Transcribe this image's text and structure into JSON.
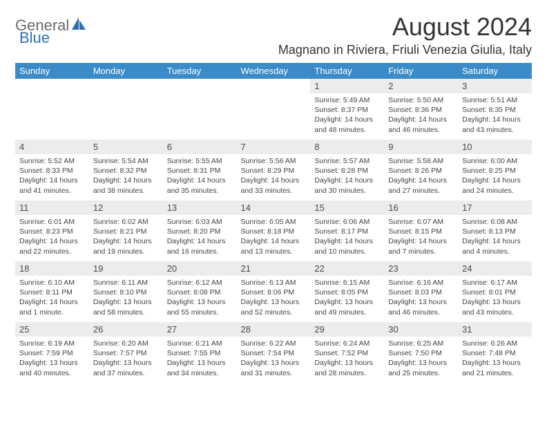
{
  "logo": {
    "text1": "General",
    "text2": "Blue"
  },
  "title": "August 2024",
  "location": "Magnano in Riviera, Friuli Venezia Giulia, Italy",
  "colors": {
    "header_bg": "#3b8bc8",
    "header_text": "#ffffff",
    "daynum_bg": "#ececec",
    "logo_gray": "#6a6a6a",
    "logo_blue": "#2f6fb0"
  },
  "weekdays": [
    "Sunday",
    "Monday",
    "Tuesday",
    "Wednesday",
    "Thursday",
    "Friday",
    "Saturday"
  ],
  "weeks": [
    [
      null,
      null,
      null,
      null,
      {
        "n": "1",
        "sr": "Sunrise: 5:49 AM",
        "ss": "Sunset: 8:37 PM",
        "dl": "Daylight: 14 hours and 48 minutes."
      },
      {
        "n": "2",
        "sr": "Sunrise: 5:50 AM",
        "ss": "Sunset: 8:36 PM",
        "dl": "Daylight: 14 hours and 46 minutes."
      },
      {
        "n": "3",
        "sr": "Sunrise: 5:51 AM",
        "ss": "Sunset: 8:35 PM",
        "dl": "Daylight: 14 hours and 43 minutes."
      }
    ],
    [
      {
        "n": "4",
        "sr": "Sunrise: 5:52 AM",
        "ss": "Sunset: 8:33 PM",
        "dl": "Daylight: 14 hours and 41 minutes."
      },
      {
        "n": "5",
        "sr": "Sunrise: 5:54 AM",
        "ss": "Sunset: 8:32 PM",
        "dl": "Daylight: 14 hours and 38 minutes."
      },
      {
        "n": "6",
        "sr": "Sunrise: 5:55 AM",
        "ss": "Sunset: 8:31 PM",
        "dl": "Daylight: 14 hours and 35 minutes."
      },
      {
        "n": "7",
        "sr": "Sunrise: 5:56 AM",
        "ss": "Sunset: 8:29 PM",
        "dl": "Daylight: 14 hours and 33 minutes."
      },
      {
        "n": "8",
        "sr": "Sunrise: 5:57 AM",
        "ss": "Sunset: 8:28 PM",
        "dl": "Daylight: 14 hours and 30 minutes."
      },
      {
        "n": "9",
        "sr": "Sunrise: 5:58 AM",
        "ss": "Sunset: 8:26 PM",
        "dl": "Daylight: 14 hours and 27 minutes."
      },
      {
        "n": "10",
        "sr": "Sunrise: 6:00 AM",
        "ss": "Sunset: 8:25 PM",
        "dl": "Daylight: 14 hours and 24 minutes."
      }
    ],
    [
      {
        "n": "11",
        "sr": "Sunrise: 6:01 AM",
        "ss": "Sunset: 8:23 PM",
        "dl": "Daylight: 14 hours and 22 minutes."
      },
      {
        "n": "12",
        "sr": "Sunrise: 6:02 AM",
        "ss": "Sunset: 8:21 PM",
        "dl": "Daylight: 14 hours and 19 minutes."
      },
      {
        "n": "13",
        "sr": "Sunrise: 6:03 AM",
        "ss": "Sunset: 8:20 PM",
        "dl": "Daylight: 14 hours and 16 minutes."
      },
      {
        "n": "14",
        "sr": "Sunrise: 6:05 AM",
        "ss": "Sunset: 8:18 PM",
        "dl": "Daylight: 14 hours and 13 minutes."
      },
      {
        "n": "15",
        "sr": "Sunrise: 6:06 AM",
        "ss": "Sunset: 8:17 PM",
        "dl": "Daylight: 14 hours and 10 minutes."
      },
      {
        "n": "16",
        "sr": "Sunrise: 6:07 AM",
        "ss": "Sunset: 8:15 PM",
        "dl": "Daylight: 14 hours and 7 minutes."
      },
      {
        "n": "17",
        "sr": "Sunrise: 6:08 AM",
        "ss": "Sunset: 8:13 PM",
        "dl": "Daylight: 14 hours and 4 minutes."
      }
    ],
    [
      {
        "n": "18",
        "sr": "Sunrise: 6:10 AM",
        "ss": "Sunset: 8:11 PM",
        "dl": "Daylight: 14 hours and 1 minute."
      },
      {
        "n": "19",
        "sr": "Sunrise: 6:11 AM",
        "ss": "Sunset: 8:10 PM",
        "dl": "Daylight: 13 hours and 58 minutes."
      },
      {
        "n": "20",
        "sr": "Sunrise: 6:12 AM",
        "ss": "Sunset: 8:08 PM",
        "dl": "Daylight: 13 hours and 55 minutes."
      },
      {
        "n": "21",
        "sr": "Sunrise: 6:13 AM",
        "ss": "Sunset: 8:06 PM",
        "dl": "Daylight: 13 hours and 52 minutes."
      },
      {
        "n": "22",
        "sr": "Sunrise: 6:15 AM",
        "ss": "Sunset: 8:05 PM",
        "dl": "Daylight: 13 hours and 49 minutes."
      },
      {
        "n": "23",
        "sr": "Sunrise: 6:16 AM",
        "ss": "Sunset: 8:03 PM",
        "dl": "Daylight: 13 hours and 46 minutes."
      },
      {
        "n": "24",
        "sr": "Sunrise: 6:17 AM",
        "ss": "Sunset: 8:01 PM",
        "dl": "Daylight: 13 hours and 43 minutes."
      }
    ],
    [
      {
        "n": "25",
        "sr": "Sunrise: 6:19 AM",
        "ss": "Sunset: 7:59 PM",
        "dl": "Daylight: 13 hours and 40 minutes."
      },
      {
        "n": "26",
        "sr": "Sunrise: 6:20 AM",
        "ss": "Sunset: 7:57 PM",
        "dl": "Daylight: 13 hours and 37 minutes."
      },
      {
        "n": "27",
        "sr": "Sunrise: 6:21 AM",
        "ss": "Sunset: 7:55 PM",
        "dl": "Daylight: 13 hours and 34 minutes."
      },
      {
        "n": "28",
        "sr": "Sunrise: 6:22 AM",
        "ss": "Sunset: 7:54 PM",
        "dl": "Daylight: 13 hours and 31 minutes."
      },
      {
        "n": "29",
        "sr": "Sunrise: 6:24 AM",
        "ss": "Sunset: 7:52 PM",
        "dl": "Daylight: 13 hours and 28 minutes."
      },
      {
        "n": "30",
        "sr": "Sunrise: 6:25 AM",
        "ss": "Sunset: 7:50 PM",
        "dl": "Daylight: 13 hours and 25 minutes."
      },
      {
        "n": "31",
        "sr": "Sunrise: 6:26 AM",
        "ss": "Sunset: 7:48 PM",
        "dl": "Daylight: 13 hours and 21 minutes."
      }
    ]
  ]
}
